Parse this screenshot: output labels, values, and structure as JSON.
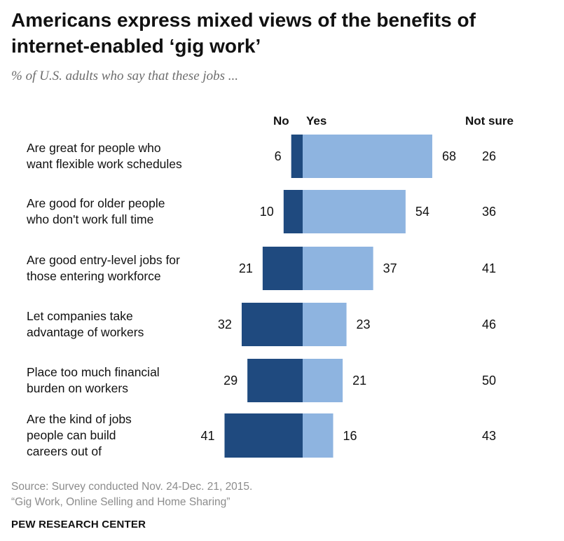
{
  "title": "Americans express mixed views of the benefits of internet-enabled ‘gig work’",
  "subtitle": "% of U.S. adults who say that these jobs ...",
  "source_line1": "Source: Survey conducted Nov. 24-Dec. 21, 2015.",
  "source_line2": "“Gig Work, Online Selling and Home Sharing”",
  "brand": "PEW RESEARCH CENTER",
  "colors": {
    "no": "#1f4a7f",
    "yes": "#8eb4e0"
  },
  "chart_data": {
    "type": "bar",
    "orientation": "horizontal-diverging",
    "title": "Americans express mixed views of the benefits of internet-enabled ‘gig work’",
    "subtitle": "% of U.S. adults who say that these jobs ...",
    "column_headers": {
      "no": "No",
      "yes": "Yes",
      "not_sure": "Not sure"
    },
    "categories": [
      [
        "Are great for people who",
        "want flexible work schedules"
      ],
      [
        "Are good for older people",
        "who don't work full time"
      ],
      [
        "Are good entry-level jobs for",
        "those entering workforce"
      ],
      [
        "Let companies take",
        "advantage of workers"
      ],
      [
        "Place too much financial",
        "burden on workers"
      ],
      [
        "Are the kind of jobs",
        "people can build",
        "careers out of"
      ]
    ],
    "series": [
      {
        "name": "No",
        "values": [
          6,
          10,
          21,
          32,
          29,
          41
        ]
      },
      {
        "name": "Yes",
        "values": [
          68,
          54,
          37,
          23,
          21,
          16
        ]
      },
      {
        "name": "Not sure",
        "values": [
          26,
          36,
          41,
          46,
          50,
          43
        ]
      }
    ]
  }
}
